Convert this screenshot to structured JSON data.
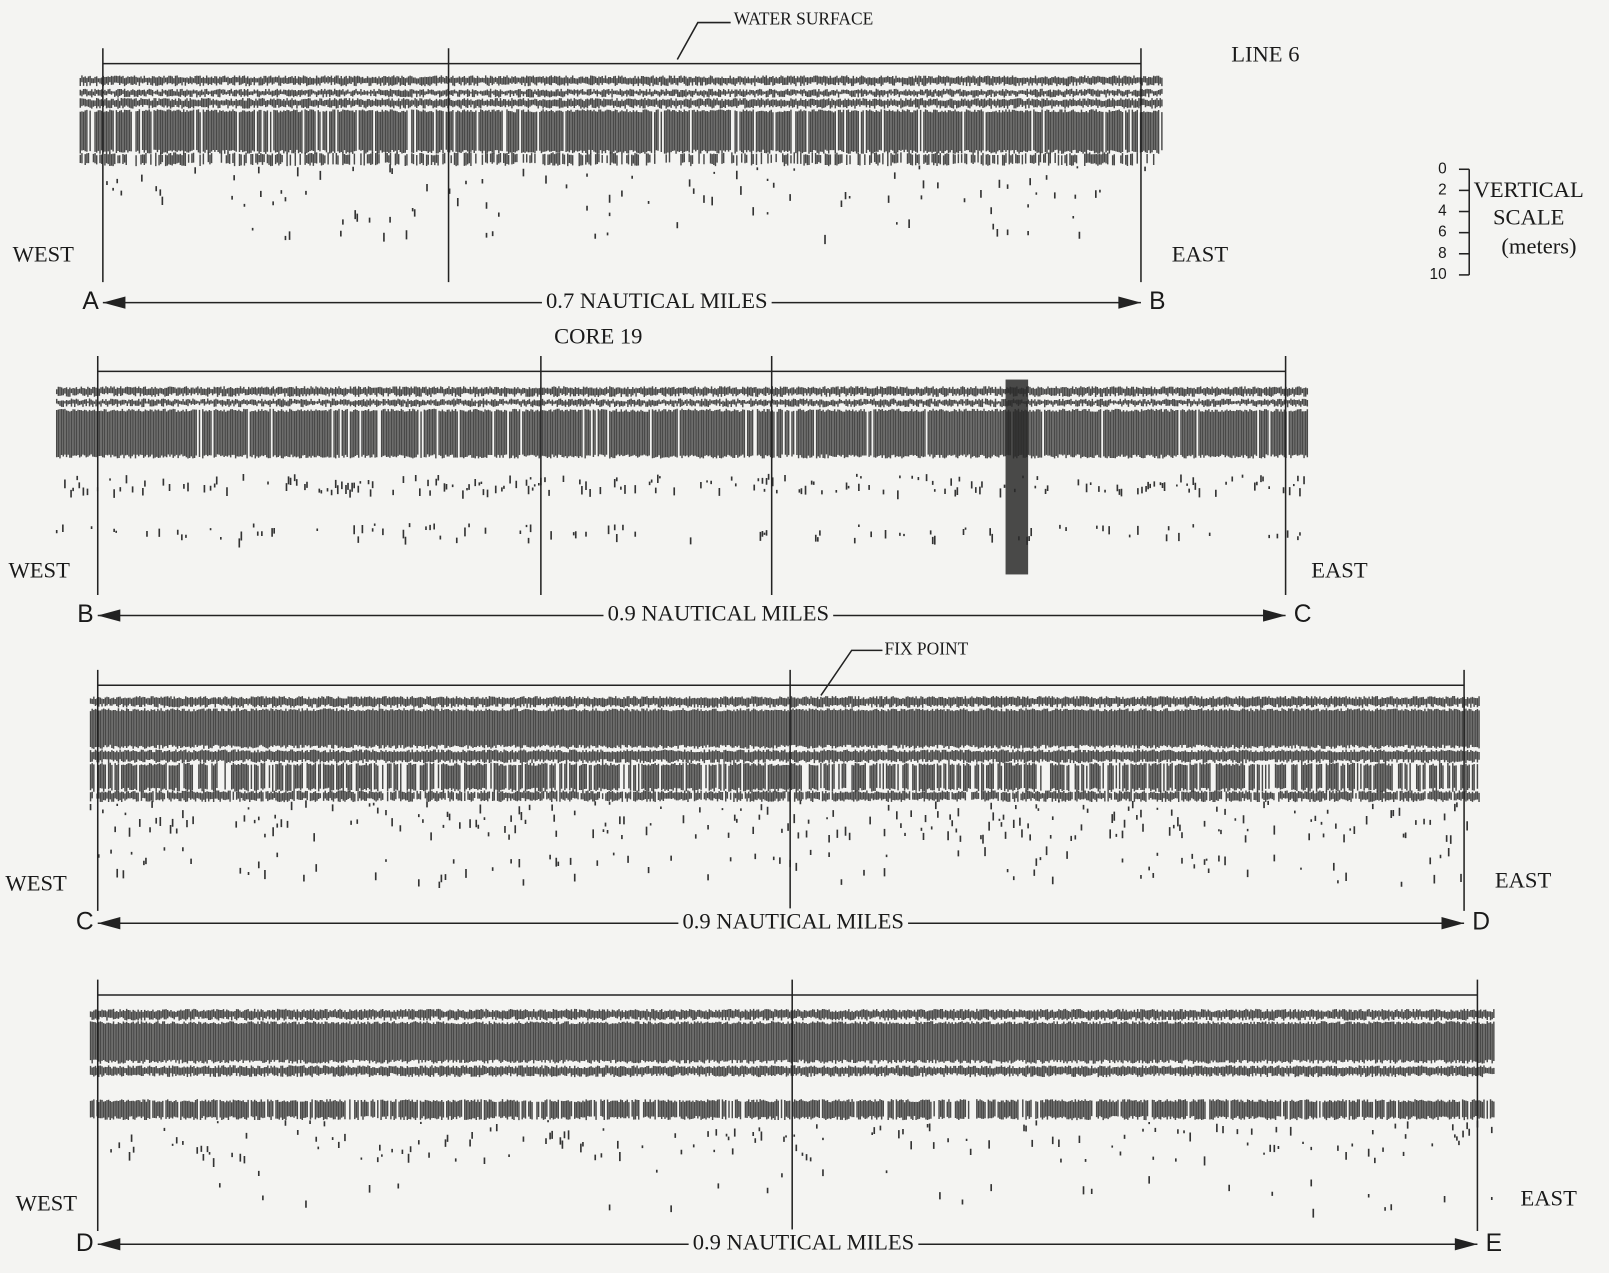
{
  "header": {
    "line_label": "LINE 6"
  },
  "vertical_scale": {
    "ticks": [
      0,
      2,
      4,
      6,
      8,
      10
    ],
    "title_lines": [
      "VERTICAL",
      "SCALE",
      "(meters)"
    ]
  },
  "panels": [
    {
      "west": "WEST",
      "east": "EAST",
      "start": "A",
      "end": "B",
      "distance": "0.7 NAUTICAL MILES",
      "annotation": "WATER SURFACE"
    },
    {
      "west": "WEST",
      "east": "EAST",
      "start": "B",
      "end": "C",
      "distance": "0.9 NAUTICAL MILES",
      "annotation": "CORE 19"
    },
    {
      "west": "WEST",
      "east": "EAST",
      "start": "C",
      "end": "D",
      "distance": "0.9 NAUTICAL MILES",
      "annotation": "FIX POINT"
    },
    {
      "west": "WEST",
      "east": "EAST",
      "start": "D",
      "end": "E",
      "distance": "0.9 NAUTICAL MILES"
    }
  ]
}
